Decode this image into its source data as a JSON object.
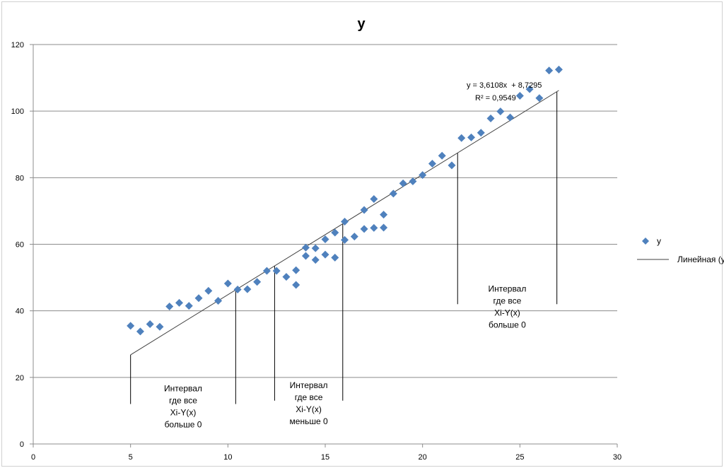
{
  "chart_data": {
    "type": "scatter",
    "title": "y",
    "xlabel": "",
    "ylabel": "",
    "xlim": [
      0,
      30
    ],
    "ylim": [
      0,
      120
    ],
    "x_ticks": [
      0,
      5,
      10,
      15,
      20,
      25,
      30
    ],
    "y_ticks": [
      0,
      20,
      40,
      60,
      80,
      100,
      120
    ],
    "grid": "horizontal",
    "legend_position": "right",
    "series": [
      {
        "name": "y",
        "marker": "diamond",
        "color": "#4f81bd",
        "points": [
          [
            5,
            35.5
          ],
          [
            5.5,
            33.8
          ],
          [
            6,
            36
          ],
          [
            6.5,
            35.2
          ],
          [
            7,
            41.3
          ],
          [
            7.5,
            42.4
          ],
          [
            8,
            41.5
          ],
          [
            8.5,
            43.8
          ],
          [
            9,
            46
          ],
          [
            9.5,
            43
          ],
          [
            10,
            48.2
          ],
          [
            10.5,
            46.4
          ],
          [
            11,
            46.5
          ],
          [
            11.5,
            48.7
          ],
          [
            12,
            52
          ],
          [
            12.5,
            52
          ],
          [
            13,
            50.2
          ],
          [
            13.5,
            52.2
          ],
          [
            13.5,
            47.8
          ],
          [
            14,
            56.5
          ],
          [
            14,
            59
          ],
          [
            14.5,
            55.3
          ],
          [
            14.5,
            58.8
          ],
          [
            15,
            56.9
          ],
          [
            15,
            61.5
          ],
          [
            15.5,
            56
          ],
          [
            15.5,
            63.5
          ],
          [
            16,
            61.3
          ],
          [
            16,
            66.8
          ],
          [
            16.5,
            62.3
          ],
          [
            17,
            64.6
          ],
          [
            17,
            70.3
          ],
          [
            17.5,
            64.9
          ],
          [
            17.5,
            73.6
          ],
          [
            18,
            65
          ],
          [
            18,
            68.9
          ],
          [
            18.5,
            75.2
          ],
          [
            19,
            78.3
          ],
          [
            19.5,
            78.9
          ],
          [
            20,
            80.8
          ],
          [
            20.5,
            84.2
          ],
          [
            21,
            86.6
          ],
          [
            21.5,
            83.7
          ],
          [
            22,
            91.9
          ],
          [
            22.5,
            92.1
          ],
          [
            23,
            93.5
          ],
          [
            23.5,
            97.8
          ],
          [
            24,
            99.9
          ],
          [
            24.5,
            98.1
          ],
          [
            25,
            104.6
          ],
          [
            25.5,
            106.6
          ],
          [
            26,
            103.9
          ],
          [
            26.5,
            112.2
          ],
          [
            27,
            112.5
          ]
        ]
      }
    ],
    "trendline": {
      "name": "Линейная (y)",
      "slope": 3.6108,
      "intercept": 8.7295,
      "x_range": [
        5,
        27
      ],
      "equation": "y = 3,6108x  + 8,7295",
      "r_squared": "R² = 0,9549",
      "color": "#404040"
    },
    "annotations": [
      {
        "lines": [
          "Интервал",
          "где все",
          "Xi-Y(x)",
          "больше 0"
        ],
        "x_from": 5,
        "x_to": 10.4,
        "y_from": 12,
        "y_to_fit": true
      },
      {
        "lines": [
          "Интервал",
          "где все",
          "Xi-Y(x)",
          "меньше 0"
        ],
        "x_from": 12.4,
        "x_to": 15.9,
        "y_from": 13,
        "y_to_fit": true
      },
      {
        "lines": [
          "Интервал",
          "где все",
          "Xi-Y(x)",
          "больше 0"
        ],
        "x_from": 21.8,
        "x_to": 26.9,
        "y_from": 42,
        "y_to_fit": true
      }
    ]
  }
}
